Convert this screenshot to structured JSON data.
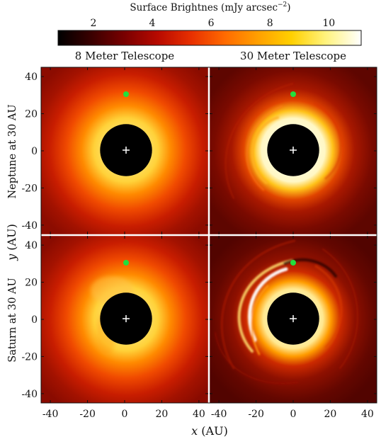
{
  "figure": {
    "colorbar": {
      "label": "Surface Brightnes (mJy arcsec",
      "label_exp": "−2",
      "label_close": ")",
      "ticks": [
        "2",
        "4",
        "6",
        "8",
        "10"
      ],
      "tick_values": [
        2,
        4,
        6,
        8,
        10
      ],
      "range": [
        0.8,
        11.1
      ],
      "colormap": [
        "#000000",
        "#3a0000",
        "#7a0000",
        "#b80a00",
        "#e83000",
        "#ff6a00",
        "#ffa000",
        "#ffd000",
        "#fff27a",
        "#ffffff"
      ]
    },
    "columns": [
      "8 Meter Telescope",
      "30 Meter Telescope"
    ],
    "rows": [
      "Neptune at 30 AU",
      "Saturn at 30 AU"
    ],
    "xlabel_var": "x",
    "xlabel_unit": " (AU)",
    "ylabel_var": "y",
    "ylabel_unit": " (AU)",
    "xlim": [
      -45,
      45
    ],
    "ylim": [
      -45,
      45
    ],
    "x_ticks": [
      -40,
      -20,
      0,
      20,
      40
    ],
    "y_ticks": [
      40,
      20,
      0,
      -20,
      -40
    ],
    "markers": {
      "planet": {
        "x": 0,
        "y": 30,
        "color": "#22e03c"
      },
      "star": {
        "x": 0,
        "y": 0,
        "symbol": "+",
        "color": "#ffffff"
      }
    },
    "mask_radius_au": 14,
    "panels": [
      {
        "row": 0,
        "col": 0,
        "peak_brightness": 11,
        "detail": "smooth"
      },
      {
        "row": 0,
        "col": 1,
        "peak_brightness": 11,
        "detail": "faint spiral"
      },
      {
        "row": 1,
        "col": 0,
        "peak_brightness": 11,
        "detail": "smooth asymmetric"
      },
      {
        "row": 1,
        "col": 1,
        "peak_brightness": 11,
        "detail": "spiral arms"
      }
    ]
  }
}
